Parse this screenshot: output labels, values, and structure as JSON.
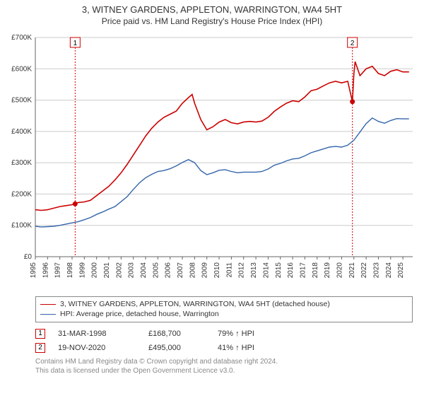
{
  "title": "3, WITNEY GARDENS, APPLETON, WARRINGTON, WA4 5HT",
  "subtitle": "Price paid vs. HM Land Registry's House Price Index (HPI)",
  "chart": {
    "type": "line",
    "background_color": "#ffffff",
    "grid_color": "#cccccc",
    "axis_color": "#666666",
    "xlim": [
      1995,
      2025.8
    ],
    "ylim": [
      0,
      700000
    ],
    "ytick_step": 100000,
    "ytick_labels": [
      "£0",
      "£100K",
      "£200K",
      "£300K",
      "£400K",
      "£500K",
      "£600K",
      "£700K"
    ],
    "xtick_years": [
      1995,
      1996,
      1997,
      1998,
      1999,
      2000,
      2001,
      2002,
      2003,
      2004,
      2005,
      2006,
      2007,
      2008,
      2009,
      2010,
      2011,
      2012,
      2013,
      2014,
      2015,
      2016,
      2017,
      2018,
      2019,
      2020,
      2021,
      2022,
      2023,
      2024,
      2025
    ],
    "series": [
      {
        "name": "property",
        "color": "#cc0000",
        "line_width": 1.6,
        "points": [
          [
            1995.0,
            150000
          ],
          [
            1995.5,
            148000
          ],
          [
            1996.0,
            150000
          ],
          [
            1996.5,
            155000
          ],
          [
            1997.0,
            160000
          ],
          [
            1997.5,
            163000
          ],
          [
            1998.0,
            166000
          ],
          [
            1998.25,
            168700
          ],
          [
            1998.5,
            173000
          ],
          [
            1999.0,
            175000
          ],
          [
            1999.5,
            180000
          ],
          [
            2000.0,
            195000
          ],
          [
            2000.5,
            210000
          ],
          [
            2001.0,
            225000
          ],
          [
            2001.5,
            245000
          ],
          [
            2002.0,
            268000
          ],
          [
            2002.5,
            295000
          ],
          [
            2003.0,
            325000
          ],
          [
            2003.5,
            355000
          ],
          [
            2004.0,
            385000
          ],
          [
            2004.5,
            410000
          ],
          [
            2005.0,
            430000
          ],
          [
            2005.5,
            445000
          ],
          [
            2006.0,
            455000
          ],
          [
            2006.5,
            465000
          ],
          [
            2007.0,
            490000
          ],
          [
            2007.5,
            508000
          ],
          [
            2007.8,
            518000
          ],
          [
            2008.0,
            490000
          ],
          [
            2008.5,
            438000
          ],
          [
            2009.0,
            405000
          ],
          [
            2009.5,
            415000
          ],
          [
            2010.0,
            430000
          ],
          [
            2010.5,
            438000
          ],
          [
            2011.0,
            428000
          ],
          [
            2011.5,
            424000
          ],
          [
            2012.0,
            430000
          ],
          [
            2012.5,
            432000
          ],
          [
            2013.0,
            430000
          ],
          [
            2013.5,
            433000
          ],
          [
            2014.0,
            445000
          ],
          [
            2014.5,
            464000
          ],
          [
            2015.0,
            478000
          ],
          [
            2015.5,
            490000
          ],
          [
            2016.0,
            498000
          ],
          [
            2016.5,
            495000
          ],
          [
            2017.0,
            510000
          ],
          [
            2017.5,
            530000
          ],
          [
            2018.0,
            535000
          ],
          [
            2018.5,
            545000
          ],
          [
            2019.0,
            555000
          ],
          [
            2019.5,
            560000
          ],
          [
            2020.0,
            555000
          ],
          [
            2020.5,
            560000
          ],
          [
            2020.88,
            495000
          ],
          [
            2021.0,
            585000
          ],
          [
            2021.1,
            623000
          ],
          [
            2021.5,
            578000
          ],
          [
            2022.0,
            600000
          ],
          [
            2022.5,
            608000
          ],
          [
            2023.0,
            585000
          ],
          [
            2023.5,
            578000
          ],
          [
            2024.0,
            592000
          ],
          [
            2024.5,
            597000
          ],
          [
            2025.0,
            590000
          ],
          [
            2025.5,
            590000
          ]
        ]
      },
      {
        "name": "hpi",
        "color": "#3366aa",
        "line_width": 1.4,
        "points": [
          [
            1995.0,
            97000
          ],
          [
            1995.5,
            95000
          ],
          [
            1996.0,
            96000
          ],
          [
            1996.5,
            97000
          ],
          [
            1997.0,
            100000
          ],
          [
            1997.5,
            104000
          ],
          [
            1998.0,
            108000
          ],
          [
            1998.5,
            112000
          ],
          [
            1999.0,
            118000
          ],
          [
            1999.5,
            125000
          ],
          [
            2000.0,
            135000
          ],
          [
            2000.5,
            143000
          ],
          [
            2001.0,
            152000
          ],
          [
            2001.5,
            160000
          ],
          [
            2002.0,
            176000
          ],
          [
            2002.5,
            192000
          ],
          [
            2003.0,
            215000
          ],
          [
            2003.5,
            236000
          ],
          [
            2004.0,
            252000
          ],
          [
            2004.5,
            263000
          ],
          [
            2005.0,
            272000
          ],
          [
            2005.5,
            275000
          ],
          [
            2006.0,
            281000
          ],
          [
            2006.5,
            290000
          ],
          [
            2007.0,
            301000
          ],
          [
            2007.5,
            310000
          ],
          [
            2008.0,
            300000
          ],
          [
            2008.5,
            275000
          ],
          [
            2009.0,
            262000
          ],
          [
            2009.5,
            268000
          ],
          [
            2010.0,
            276000
          ],
          [
            2010.5,
            278000
          ],
          [
            2011.0,
            272000
          ],
          [
            2011.5,
            268000
          ],
          [
            2012.0,
            270000
          ],
          [
            2012.5,
            270000
          ],
          [
            2013.0,
            270000
          ],
          [
            2013.5,
            272000
          ],
          [
            2014.0,
            280000
          ],
          [
            2014.5,
            292000
          ],
          [
            2015.0,
            298000
          ],
          [
            2015.5,
            306000
          ],
          [
            2016.0,
            312000
          ],
          [
            2016.5,
            314000
          ],
          [
            2017.0,
            322000
          ],
          [
            2017.5,
            332000
          ],
          [
            2018.0,
            338000
          ],
          [
            2018.5,
            344000
          ],
          [
            2019.0,
            350000
          ],
          [
            2019.5,
            352000
          ],
          [
            2020.0,
            350000
          ],
          [
            2020.5,
            356000
          ],
          [
            2021.0,
            372000
          ],
          [
            2021.5,
            398000
          ],
          [
            2022.0,
            425000
          ],
          [
            2022.5,
            443000
          ],
          [
            2023.0,
            432000
          ],
          [
            2023.5,
            426000
          ],
          [
            2024.0,
            435000
          ],
          [
            2024.5,
            441000
          ],
          [
            2025.0,
            440000
          ],
          [
            2025.5,
            440000
          ]
        ]
      }
    ],
    "event_markers": [
      {
        "label": "1",
        "x": 1998.25,
        "y": 168700,
        "color": "#cc0000"
      },
      {
        "label": "2",
        "x": 2020.88,
        "y": 495000,
        "color": "#cc0000"
      }
    ]
  },
  "legend": {
    "rows": [
      {
        "color": "#cc0000",
        "text": "3, WITNEY GARDENS, APPLETON, WARRINGTON, WA4 5HT (detached house)"
      },
      {
        "color": "#3366aa",
        "text": "HPI: Average price, detached house, Warrington"
      }
    ]
  },
  "events": {
    "rows": [
      {
        "label": "1",
        "color": "#cc0000",
        "date": "31-MAR-1998",
        "price": "£168,700",
        "pct": "79% ↑ HPI"
      },
      {
        "label": "2",
        "color": "#cc0000",
        "date": "19-NOV-2020",
        "price": "£495,000",
        "pct": "41% ↑ HPI"
      }
    ]
  },
  "footnote_line1": "Contains HM Land Registry data © Crown copyright and database right 2024.",
  "footnote_line2": "This data is licensed under the Open Government Licence v3.0."
}
